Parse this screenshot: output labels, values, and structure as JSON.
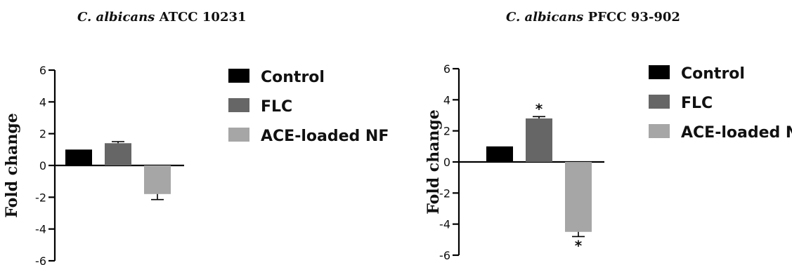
{
  "chart_data": [
    {
      "type": "bar",
      "title": {
        "species": "C. albicans",
        "strain": "ATCC 10231"
      },
      "ylabel": "Fold change",
      "ylim": [
        -6,
        6
      ],
      "yticks": [
        "6",
        "4",
        "2",
        "0",
        "-2",
        "-4",
        "-6"
      ],
      "categories": [
        "Control",
        "FLC",
        "ACE-loaded NF"
      ],
      "values": [
        1.0,
        1.4,
        -1.8
      ],
      "errors": [
        0,
        0.1,
        0.35
      ],
      "significance": [
        "",
        "",
        ""
      ],
      "colors": [
        "#000000",
        "#666666",
        "#a6a6a6"
      ],
      "legend": [
        "Control",
        "FLC",
        "ACE-loaded NF"
      ],
      "legend_position": "right"
    },
    {
      "type": "bar",
      "title": {
        "species": "C. albicans",
        "strain": "PFCC 93-902"
      },
      "ylabel": "Fold change",
      "ylim": [
        -6,
        6
      ],
      "yticks": [
        "6",
        "4",
        "2",
        "0",
        "-2",
        "-4",
        "-6"
      ],
      "categories": [
        "Control",
        "FLC",
        "ACE-loaded NF"
      ],
      "values": [
        1.0,
        2.8,
        -4.5
      ],
      "errors": [
        0,
        0.12,
        0.3
      ],
      "significance": [
        "",
        "*",
        "*"
      ],
      "colors": [
        "#000000",
        "#666666",
        "#a6a6a6"
      ],
      "legend": [
        "Control",
        "FLC",
        "ACE-loaded NF"
      ],
      "legend_position": "right"
    }
  ]
}
